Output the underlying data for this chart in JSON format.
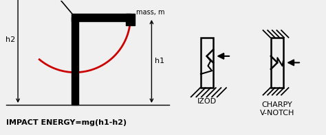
{
  "bg_color": "#f0f0f0",
  "black": "#000000",
  "red": "#cc0000",
  "white": "#ffffff",
  "title_text": "IMPACT ENERGY=mg(h1-h2)",
  "mass_label": "mass, m",
  "h1_label": "h1",
  "h2_label": "h2",
  "izod_label": "IZOD",
  "charpy_label": "CHARPY\nV-NOTCH",
  "figsize": [
    4.74,
    1.97
  ],
  "dpi": 100,
  "xlim": [
    0,
    10
  ],
  "ylim": [
    0,
    4.1
  ]
}
